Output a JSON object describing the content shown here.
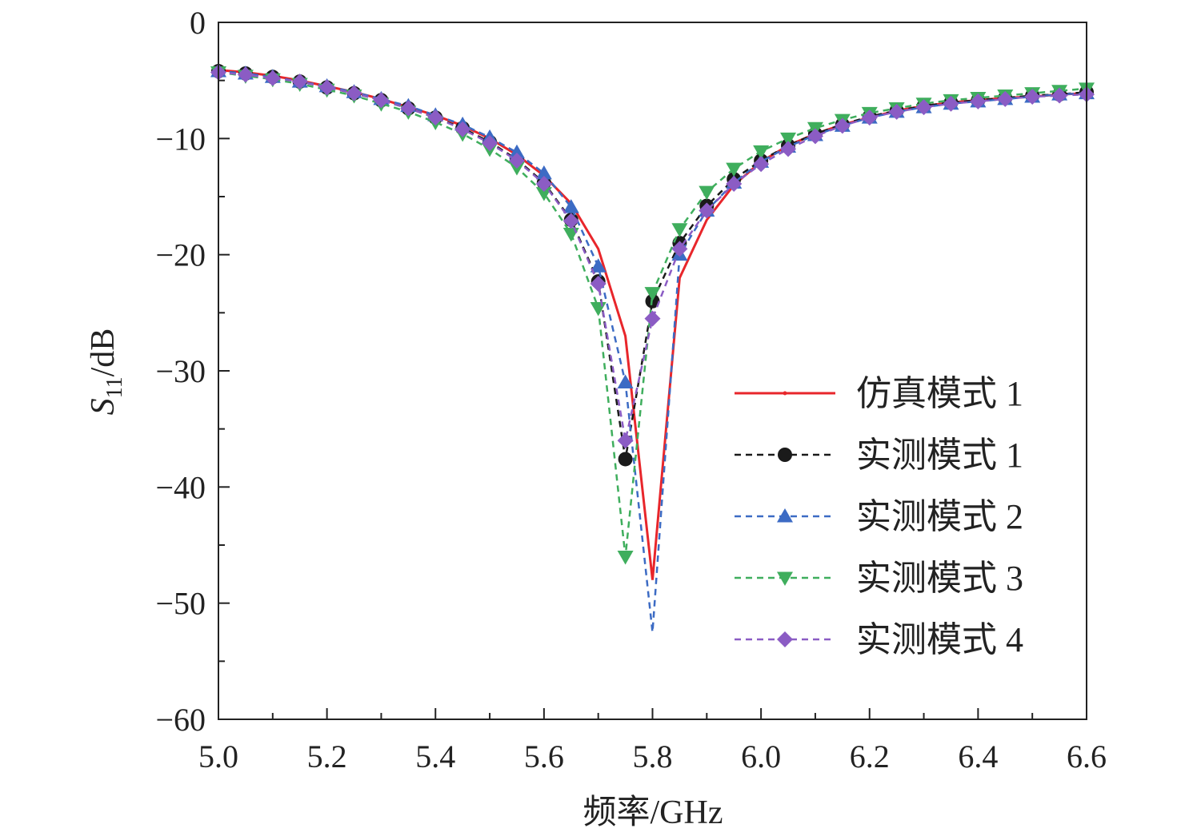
{
  "chart_data": {
    "type": "line",
    "title": "",
    "xlabel": "频率/GHz",
    "ylabel": "S11/dB",
    "ylabel_main": "S",
    "ylabel_sub": "11",
    "ylabel_unit": "/dB",
    "xlim": [
      5.0,
      6.6
    ],
    "ylim": [
      -60,
      0
    ],
    "xticks": [
      "5.0",
      "5.2",
      "5.4",
      "5.6",
      "5.8",
      "6.0",
      "6.2",
      "6.4",
      "6.6"
    ],
    "yticks": [
      "0",
      "−10",
      "−20",
      "−30",
      "−40",
      "−50",
      "−60"
    ],
    "legend_position": "right",
    "x": [
      5.0,
      5.05,
      5.1,
      5.15,
      5.2,
      5.25,
      5.3,
      5.35,
      5.4,
      5.45,
      5.5,
      5.55,
      5.6,
      5.65,
      5.7,
      5.75,
      5.8,
      5.85,
      5.9,
      5.95,
      6.0,
      6.05,
      6.1,
      6.15,
      6.2,
      6.25,
      6.3,
      6.35,
      6.4,
      6.45,
      6.5,
      6.55,
      6.6
    ],
    "series": [
      {
        "name": "仿真模式 1",
        "color": "#e8262b",
        "style": "solid",
        "marker": "none",
        "values": [
          -4.1,
          -4.3,
          -4.6,
          -5.0,
          -5.5,
          -6.0,
          -6.6,
          -7.3,
          -8.0,
          -8.9,
          -10.0,
          -11.4,
          -13.2,
          -15.6,
          -19.5,
          -27.0,
          -48.0,
          -22.0,
          -17.0,
          -14.0,
          -12.0,
          -10.6,
          -9.6,
          -8.8,
          -8.2,
          -7.6,
          -7.2,
          -6.9,
          -6.7,
          -6.5,
          -6.4,
          -6.2,
          -6.1
        ]
      },
      {
        "name": "实测模式 1",
        "color": "#1a1a1a",
        "style": "dashed",
        "marker": "circle",
        "values": [
          -4.2,
          -4.4,
          -4.7,
          -5.1,
          -5.6,
          -6.1,
          -6.7,
          -7.4,
          -8.2,
          -9.1,
          -10.3,
          -11.8,
          -13.8,
          -17.0,
          -22.3,
          -37.6,
          -24.0,
          -19.0,
          -15.8,
          -13.5,
          -11.9,
          -10.6,
          -9.6,
          -8.8,
          -8.1,
          -7.6,
          -7.2,
          -6.9,
          -6.7,
          -6.5,
          -6.3,
          -6.2,
          -6.0
        ]
      },
      {
        "name": "实测模式 2",
        "color": "#3c6bc4",
        "style": "dashed",
        "marker": "triangle-up",
        "values": [
          -4.2,
          -4.4,
          -4.7,
          -5.1,
          -5.5,
          -6.0,
          -6.6,
          -7.2,
          -8.0,
          -8.8,
          -9.9,
          -11.2,
          -13.0,
          -15.9,
          -21.0,
          -31.0,
          -52.5,
          -20.0,
          -16.2,
          -13.8,
          -12.0,
          -10.7,
          -9.7,
          -8.9,
          -8.2,
          -7.7,
          -7.3,
          -7.0,
          -6.8,
          -6.6,
          -6.4,
          -6.2,
          -6.1
        ]
      },
      {
        "name": "实测模式 3",
        "color": "#3fae5d",
        "style": "dashed",
        "marker": "triangle-down",
        "values": [
          -4.3,
          -4.6,
          -4.9,
          -5.3,
          -5.8,
          -6.3,
          -7.0,
          -7.7,
          -8.6,
          -9.6,
          -10.9,
          -12.5,
          -14.7,
          -18.2,
          -24.6,
          -46.0,
          -23.3,
          -17.8,
          -14.6,
          -12.6,
          -11.1,
          -10.0,
          -9.1,
          -8.4,
          -7.8,
          -7.4,
          -7.0,
          -6.7,
          -6.5,
          -6.3,
          -6.1,
          -5.9,
          -5.7
        ]
      },
      {
        "name": "实测模式 4",
        "color": "#8b5cc4",
        "style": "dashed",
        "marker": "diamond",
        "values": [
          -4.3,
          -4.5,
          -4.8,
          -5.1,
          -5.6,
          -6.1,
          -6.7,
          -7.4,
          -8.2,
          -9.2,
          -10.4,
          -11.9,
          -13.9,
          -17.1,
          -22.5,
          -36.0,
          -25.5,
          -19.5,
          -16.2,
          -13.9,
          -12.2,
          -10.9,
          -9.8,
          -8.9,
          -8.2,
          -7.7,
          -7.3,
          -7.0,
          -6.8,
          -6.6,
          -6.4,
          -6.3,
          -6.2
        ]
      }
    ]
  }
}
